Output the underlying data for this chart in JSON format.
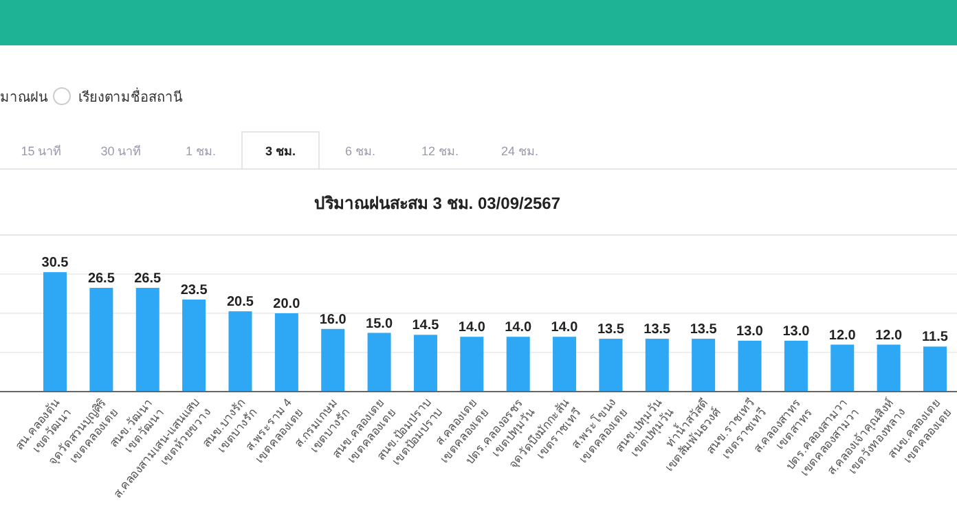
{
  "chart_data": {
    "type": "bar",
    "title": "ปริมาณฝนสะสม 3 ชม. 03/09/2567",
    "categories": [
      "สน.คลองตัน\nเขตวัฒนา",
      "จุดวัดสวนบุญศิริ\nเขตคลองเตย",
      "สนข.วัฒนา\nเขตวัฒนา",
      "ส.คลองสามเสน-แสนแสบ\nเขตห้วยขวาง",
      "สนข.บางรัก\nเขตบางรัก",
      "ส.พระราม 4\nเขตคลองเตย",
      "ส.กรมเกษม\nเขตบางรัก",
      "สนข.คลองเตย\nเขตคลองเตย",
      "สนข.ป้อมปราบ\nเขตป้อมปราบ",
      "ส.คลองเตย\nเขตคลองเตย",
      "ปตร.คลองอรชร\nเขตปทุมวัน",
      "จุดวัดบึงมักกะสัน\nเขตราชเทวี",
      "ส.พระโขนง\nเขตคลองเตย",
      "สนข.ปทุมวัน\nเขตปทุมวัน",
      "ท่าน้ำสวัสดี\nเขตสัมพันธวงศ์",
      "สนข.ราชเทวี\nเขตราชเทวี",
      "ส.คลองสาทร\nเขตสาทร",
      "ปตร.คลองสามวา\nเขตคลองสามวา",
      "ส.คลองเจ้าคุณสิงห์\nเขตวังทองหลาง",
      "สนข.คลองเตย\nเขตคลองเตย"
    ],
    "values": [
      30.5,
      26.5,
      26.5,
      23.5,
      20.5,
      20.0,
      16.0,
      15.0,
      14.5,
      14.0,
      14.0,
      14.0,
      13.5,
      13.5,
      13.5,
      13.0,
      13.0,
      12.0,
      12.0,
      11.5
    ],
    "value_labels": [
      "30.5",
      "26.5",
      "26.5",
      "23.5",
      "20.5",
      "20.0",
      "16.0",
      "15.0",
      "14.5",
      "14.0",
      "14.0",
      "14.0",
      "13.5",
      "13.5",
      "13.5",
      "13.0",
      "13.0",
      "12.0",
      "12.0",
      "11.5"
    ],
    "color": "#2ea7f5",
    "ylim": [
      0,
      40
    ],
    "yticks": [
      {
        "value": 0,
        "label": null
      },
      {
        "value": 10,
        "label": null
      },
      {
        "value": 20,
        "label": null
      },
      {
        "value": 30,
        "label": null
      }
    ],
    "tick_labels": "x",
    "grid": "y",
    "annotations": [
      "มาณฝน",
      "เรียงตามชื่อสถานี",
      "15 นาที",
      "30 นาที",
      "1 ชม.",
      "3 ชม.",
      "6 ชม.",
      "12 ชม.",
      "24 ชม."
    ]
  }
}
